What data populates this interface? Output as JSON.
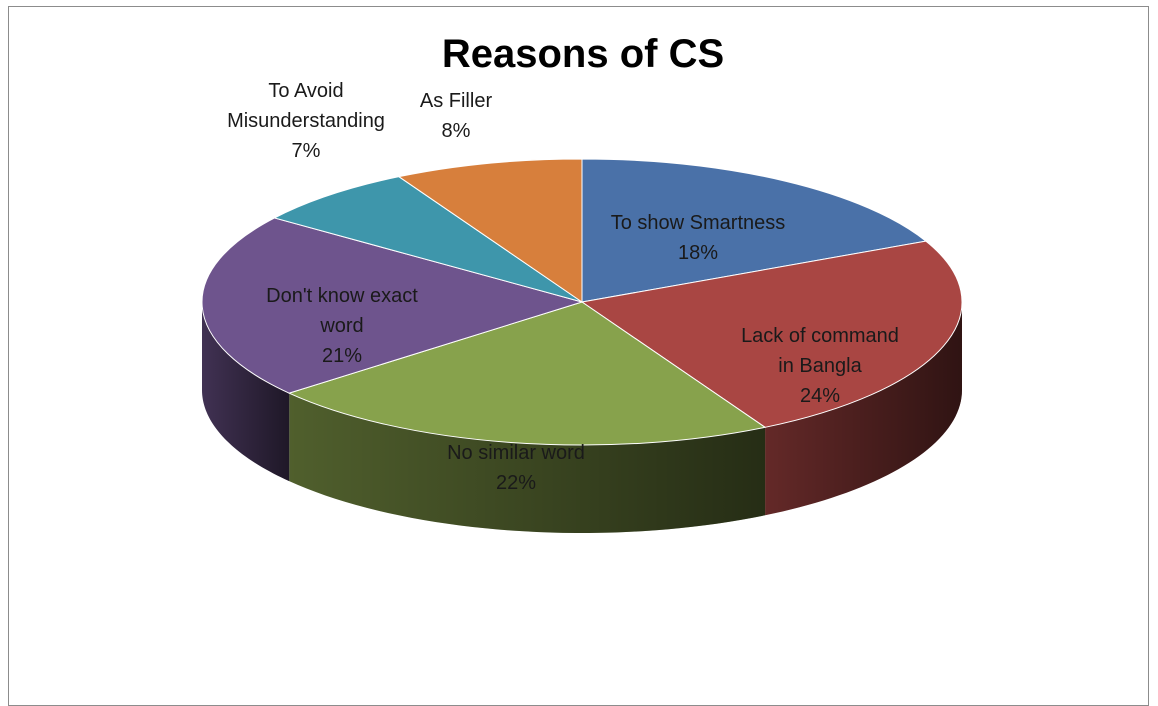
{
  "chart_data": {
    "type": "pie",
    "title": "Reasons of CS",
    "slices": [
      {
        "label": "To show Smartness",
        "value": 18,
        "value_label": "18%",
        "color": "#4a71a8"
      },
      {
        "label": "Lack of command in Bangla",
        "value": 24,
        "value_label": "24%",
        "color": "#a94643"
      },
      {
        "label": "No similar word",
        "value": 22,
        "value_label": "22%",
        "color": "#87a24c"
      },
      {
        "label": "Don't know exact word",
        "value": 21,
        "value_label": "21%",
        "color": "#6e548d"
      },
      {
        "label": "To Avoid Misunderstanding",
        "value": 7,
        "value_label": "7%",
        "color": "#3e96ab"
      },
      {
        "label": "As Filler",
        "value": 8,
        "value_label": "8%",
        "color": "#d77f3c"
      }
    ],
    "style": "3d"
  }
}
